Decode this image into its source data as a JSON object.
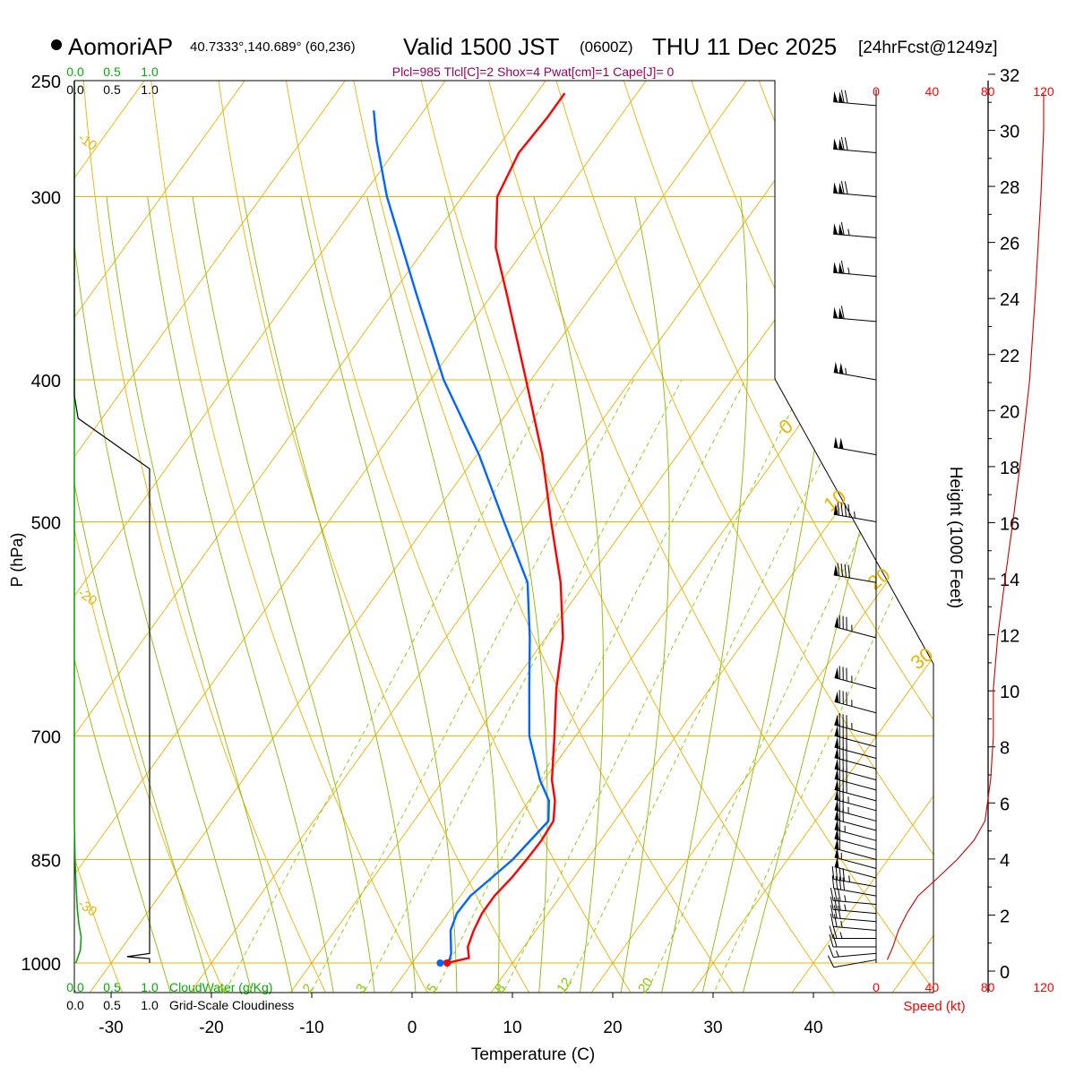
{
  "header": {
    "station": "AomoriAP",
    "coords": "40.7333°,140.689° (60,236)",
    "valid_prefix": "Valid 1500 JST",
    "zulu": "(0600Z)",
    "valid_date": "THU 11 Dec 2025",
    "forecast": "[24hrFcst@1249z]",
    "indices": "Plcl=985 Tlcl[C]=2 Shox=4 Pwat[cm]=1 Cape[J]= 0"
  },
  "colors": {
    "temperature": "#ff0000",
    "dewpoint": "#0066ff",
    "isobar": "#e8b400",
    "isotherm": "#e8b400",
    "dry_adiabat": "#e8b400",
    "moist_adiabat": "#88bb00",
    "mixing_ratio": "#88cc00",
    "cloud_water": "#00a000",
    "cloudiness": "#000000",
    "height_curve": "#cc0000",
    "indices_text": "#a0005a",
    "speed_text": "#ff0000"
  },
  "labels": {
    "y_axis": "P (hPa)",
    "x_axis": "Temperature (C)",
    "height_axis": "Height (1000 Feet)",
    "speed_axis": "Speed (kt)",
    "cloudwater": "CloudWater (g/Kg)",
    "cloudiness": "Grid-Scale Cloudiness",
    "scale_green": [
      "0.0",
      "0.5",
      "1.0"
    ],
    "scale_black": [
      "0.0",
      "0.5",
      "1.0"
    ],
    "speed_ticks": [
      "0",
      "40",
      "80",
      "120"
    ]
  },
  "chart_data": {
    "type": "line",
    "title": "AomoriAP Skew-T Sounding, Valid 1500 JST THU 11 Dec 2025",
    "xlabel": "Temperature (C)",
    "ylabel": "P (hPa)",
    "pressure_levels": [
      250,
      300,
      400,
      500,
      700,
      850,
      1000
    ],
    "pressure_tick_labels": [
      "250",
      "300",
      "400",
      "500",
      "700",
      "850",
      "1000"
    ],
    "xlim": [
      -36,
      53
    ],
    "ylim": [
      1050,
      250
    ],
    "x_ticks": [
      -30,
      -20,
      -10,
      0,
      10,
      20,
      30,
      40
    ],
    "x_tick_labels": [
      "-30",
      "-20",
      "-10",
      "0",
      "10",
      "20",
      "30",
      "40"
    ],
    "dry_adiabat_labels": [
      {
        "text": "10",
        "theta_c": 10
      },
      {
        "text": "0",
        "theta_c": 0
      },
      {
        "text": "-10",
        "theta_c": -10
      },
      {
        "text": "-20",
        "theta_c": -20
      },
      {
        "text": "-30",
        "theta_c": -30
      }
    ],
    "isotherm_edge_labels": [
      {
        "text": "0",
        "temp_c": 0
      },
      {
        "text": "10",
        "temp_c": 10
      },
      {
        "text": "20",
        "temp_c": 20
      },
      {
        "text": "30",
        "temp_c": 30
      }
    ],
    "mixing_ratio_labels": [
      "1",
      "2",
      "3",
      "5",
      "8",
      "12",
      "20"
    ],
    "series": [
      {
        "name": "Temperature",
        "points": [
          {
            "p": 1000,
            "t": 3.5
          },
          {
            "p": 992,
            "t": 5.3
          },
          {
            "p": 975,
            "t": 4.4
          },
          {
            "p": 950,
            "t": 3.8
          },
          {
            "p": 925,
            "t": 3.4
          },
          {
            "p": 900,
            "t": 3.4
          },
          {
            "p": 875,
            "t": 3.8
          },
          {
            "p": 850,
            "t": 4.0
          },
          {
            "p": 825,
            "t": 4.1
          },
          {
            "p": 800,
            "t": 3.9
          },
          {
            "p": 775,
            "t": 2.6
          },
          {
            "p": 750,
            "t": 0.8
          },
          {
            "p": 700,
            "t": -2.1
          },
          {
            "p": 650,
            "t": -5.3
          },
          {
            "p": 600,
            "t": -8.3
          },
          {
            "p": 550,
            "t": -12.5
          },
          {
            "p": 500,
            "t": -17.8
          },
          {
            "p": 450,
            "t": -23.5
          },
          {
            "p": 400,
            "t": -30.5
          },
          {
            "p": 350,
            "t": -38.5
          },
          {
            "p": 325,
            "t": -43.0
          },
          {
            "p": 300,
            "t": -46.5
          },
          {
            "p": 280,
            "t": -47.5
          },
          {
            "p": 265,
            "t": -47.2
          },
          {
            "p": 255,
            "t": -47.2
          }
        ]
      },
      {
        "name": "Dewpoint",
        "points": [
          {
            "p": 1000,
            "t": 2.8
          },
          {
            "p": 995,
            "t": 3.5
          },
          {
            "p": 985,
            "t": 3.2
          },
          {
            "p": 950,
            "t": 1.5
          },
          {
            "p": 925,
            "t": 0.9
          },
          {
            "p": 900,
            "t": 1.0
          },
          {
            "p": 875,
            "t": 1.8
          },
          {
            "p": 850,
            "t": 2.6
          },
          {
            "p": 800,
            "t": 3.4
          },
          {
            "p": 775,
            "t": 2.0
          },
          {
            "p": 750,
            "t": -0.4
          },
          {
            "p": 700,
            "t": -4.6
          },
          {
            "p": 650,
            "t": -8.0
          },
          {
            "p": 600,
            "t": -11.6
          },
          {
            "p": 550,
            "t": -15.8
          },
          {
            "p": 500,
            "t": -22.5
          },
          {
            "p": 450,
            "t": -29.8
          },
          {
            "p": 400,
            "t": -38.7
          },
          {
            "p": 350,
            "t": -47.5
          },
          {
            "p": 300,
            "t": -57.5
          },
          {
            "p": 275,
            "t": -62.5
          },
          {
            "p": 262,
            "t": -65.0
          }
        ]
      }
    ],
    "surface_markers": [
      {
        "name": "surface-temp-dot",
        "p": 1000,
        "t": 3.5
      },
      {
        "name": "surface-dewpoint-dot",
        "p": 1000,
        "t": 2.8
      }
    ],
    "height_axis": {
      "label": "Height (1000 Feet)",
      "ticks": [
        0,
        2,
        4,
        6,
        8,
        10,
        12,
        14,
        16,
        18,
        20,
        22,
        24,
        26,
        28,
        30,
        32
      ],
      "tick_labels": [
        "0",
        "2",
        "4",
        "6",
        "8",
        "10",
        "12",
        "14",
        "16",
        "18",
        "20",
        "22",
        "24",
        "26",
        "28",
        "30",
        "32"
      ]
    },
    "speed_axis": {
      "label": "Speed (kt)",
      "ticks": [
        0,
        40,
        80,
        120
      ],
      "wind_speed_profile": [
        {
          "p": 995,
          "kt": 8
        },
        {
          "p": 975,
          "kt": 12
        },
        {
          "p": 950,
          "kt": 16
        },
        {
          "p": 925,
          "kt": 22
        },
        {
          "p": 900,
          "kt": 30
        },
        {
          "p": 875,
          "kt": 44
        },
        {
          "p": 850,
          "kt": 58
        },
        {
          "p": 825,
          "kt": 70
        },
        {
          "p": 800,
          "kt": 78
        },
        {
          "p": 750,
          "kt": 82
        },
        {
          "p": 700,
          "kt": 84
        },
        {
          "p": 650,
          "kt": 84
        },
        {
          "p": 600,
          "kt": 87
        },
        {
          "p": 550,
          "kt": 92
        },
        {
          "p": 500,
          "kt": 98
        },
        {
          "p": 450,
          "kt": 104
        },
        {
          "p": 400,
          "kt": 110
        },
        {
          "p": 350,
          "kt": 114
        },
        {
          "p": 300,
          "kt": 118
        },
        {
          "p": 270,
          "kt": 120
        },
        {
          "p": 255,
          "kt": 120
        }
      ]
    },
    "wind_barbs": [
      {
        "p": 995,
        "dir": 260,
        "kt": 10
      },
      {
        "p": 985,
        "dir": 265,
        "kt": 15
      },
      {
        "p": 975,
        "dir": 270,
        "kt": 20
      },
      {
        "p": 962,
        "dir": 270,
        "kt": 25
      },
      {
        "p": 950,
        "dir": 275,
        "kt": 25
      },
      {
        "p": 937,
        "dir": 275,
        "kt": 30
      },
      {
        "p": 925,
        "dir": 275,
        "kt": 35
      },
      {
        "p": 912,
        "dir": 275,
        "kt": 35
      },
      {
        "p": 900,
        "dir": 280,
        "kt": 40
      },
      {
        "p": 887,
        "dir": 280,
        "kt": 45
      },
      {
        "p": 875,
        "dir": 285,
        "kt": 50
      },
      {
        "p": 862,
        "dir": 285,
        "kt": 55
      },
      {
        "p": 850,
        "dir": 285,
        "kt": 60
      },
      {
        "p": 837,
        "dir": 285,
        "kt": 60
      },
      {
        "p": 825,
        "dir": 285,
        "kt": 65
      },
      {
        "p": 812,
        "dir": 285,
        "kt": 70
      },
      {
        "p": 800,
        "dir": 285,
        "kt": 75
      },
      {
        "p": 787,
        "dir": 285,
        "kt": 75
      },
      {
        "p": 775,
        "dir": 285,
        "kt": 80
      },
      {
        "p": 762,
        "dir": 285,
        "kt": 80
      },
      {
        "p": 750,
        "dir": 285,
        "kt": 80
      },
      {
        "p": 737,
        "dir": 285,
        "kt": 80
      },
      {
        "p": 725,
        "dir": 285,
        "kt": 80
      },
      {
        "p": 712,
        "dir": 285,
        "kt": 80
      },
      {
        "p": 700,
        "dir": 285,
        "kt": 85
      },
      {
        "p": 675,
        "dir": 285,
        "kt": 85
      },
      {
        "p": 650,
        "dir": 285,
        "kt": 85
      },
      {
        "p": 600,
        "dir": 285,
        "kt": 85
      },
      {
        "p": 550,
        "dir": 280,
        "kt": 90
      },
      {
        "p": 500,
        "dir": 280,
        "kt": 95
      },
      {
        "p": 450,
        "dir": 280,
        "kt": 100
      },
      {
        "p": 400,
        "dir": 280,
        "kt": 105
      },
      {
        "p": 365,
        "dir": 275,
        "kt": 110
      },
      {
        "p": 340,
        "dir": 275,
        "kt": 115
      },
      {
        "p": 320,
        "dir": 275,
        "kt": 115
      },
      {
        "p": 300,
        "dir": 275,
        "kt": 120
      },
      {
        "p": 280,
        "dir": 275,
        "kt": 120
      },
      {
        "p": 260,
        "dir": 275,
        "kt": 120
      }
    ],
    "cloud_water_profile": [
      {
        "p": 1000,
        "v": 0.02
      },
      {
        "p": 990,
        "v": 0.05
      },
      {
        "p": 980,
        "v": 0.08
      },
      {
        "p": 960,
        "v": 0.09
      },
      {
        "p": 940,
        "v": 0.06
      },
      {
        "p": 920,
        "v": 0.04
      },
      {
        "p": 900,
        "v": 0.03
      },
      {
        "p": 880,
        "v": 0.02
      },
      {
        "p": 850,
        "v": 0.01
      },
      {
        "p": 800,
        "v": 0.0
      },
      {
        "p": 250,
        "v": 0.0
      }
    ],
    "cloudiness_profile": [
      {
        "p": 1000,
        "v": 1.0
      },
      {
        "p": 993,
        "v": 1.0
      },
      {
        "p": 990,
        "v": 0.7
      },
      {
        "p": 985,
        "v": 1.0
      },
      {
        "p": 460,
        "v": 1.0
      },
      {
        "p": 425,
        "v": 0.05
      },
      {
        "p": 410,
        "v": 0.0
      },
      {
        "p": 250,
        "v": 0.0
      }
    ]
  }
}
